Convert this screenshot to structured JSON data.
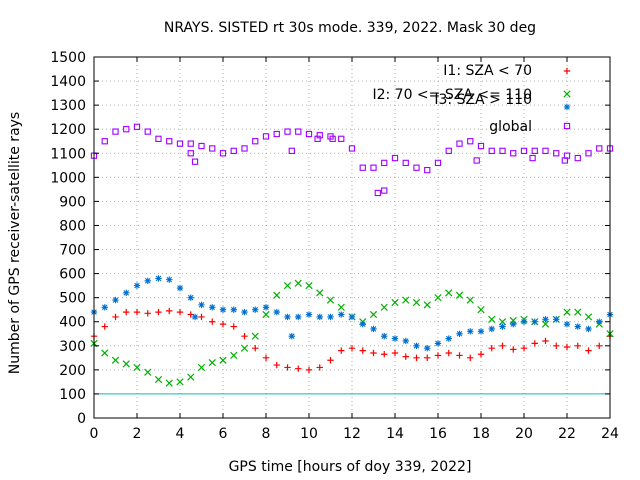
{
  "chart_data": {
    "type": "scatter",
    "title": "NRAYS. SISTED rt 30s mode. 339, 2022. Mask 30 deg",
    "xlabel": "GPS time [hours of doy 339, 2022]",
    "ylabel": "Number of GPS receiver-satellite rays",
    "xlim": [
      0,
      24
    ],
    "ylim": [
      0,
      1500
    ],
    "xticks": [
      "0",
      "2",
      "4",
      "6",
      "8",
      "10",
      "12",
      "14",
      "16",
      "18",
      "20",
      "22",
      "24"
    ],
    "yticks": [
      "0",
      "100",
      "200",
      "300",
      "400",
      "500",
      "600",
      "700",
      "800",
      "900",
      "1000",
      "1100",
      "1200",
      "1300",
      "1400",
      "1500"
    ],
    "grid": true,
    "legend_position": "top-right",
    "reference_line": {
      "y": 100,
      "color": "#00c0c0"
    },
    "series": [
      {
        "name": "I1: SZA < 70",
        "marker": "+",
        "color": "#ff0000",
        "x": [
          0,
          0.5,
          1,
          1.5,
          2,
          2.5,
          3,
          3.5,
          4,
          4.5,
          5,
          5.5,
          6,
          6.5,
          7,
          7.5,
          8,
          8.5,
          9,
          9.5,
          10,
          10.5,
          11,
          11.5,
          12,
          12.5,
          13,
          13.5,
          14,
          14.5,
          15,
          15.5,
          16,
          16.5,
          17,
          17.5,
          18,
          18.5,
          19,
          19.5,
          20,
          20.5,
          21,
          21.5,
          22,
          22.5,
          23,
          23.5,
          24
        ],
        "y": [
          340,
          380,
          420,
          440,
          440,
          435,
          440,
          445,
          440,
          430,
          420,
          400,
          390,
          380,
          340,
          290,
          250,
          220,
          210,
          205,
          200,
          210,
          240,
          280,
          290,
          280,
          270,
          265,
          270,
          255,
          250,
          250,
          260,
          270,
          260,
          250,
          265,
          290,
          300,
          285,
          290,
          310,
          320,
          300,
          295,
          300,
          280,
          300,
          340
        ]
      },
      {
        "name": "I2: 70 <= SZA <= 110",
        "marker": "x",
        "color": "#00b000",
        "x": [
          0,
          0.5,
          1,
          1.5,
          2,
          2.5,
          3,
          3.5,
          4,
          4.5,
          5,
          5.5,
          6,
          6.5,
          7,
          7.5,
          8,
          8.5,
          9,
          9.5,
          10,
          10.5,
          11,
          11.5,
          12,
          12.5,
          13,
          13.5,
          14,
          14.5,
          15,
          15.5,
          16,
          16.5,
          17,
          17.5,
          18,
          18.5,
          19,
          19.5,
          20,
          20.5,
          21,
          21.5,
          22,
          22.5,
          23,
          23.5,
          24
        ],
        "y": [
          310,
          270,
          240,
          225,
          210,
          190,
          160,
          145,
          150,
          170,
          210,
          230,
          240,
          260,
          290,
          340,
          430,
          510,
          550,
          560,
          550,
          520,
          490,
          460,
          420,
          400,
          430,
          460,
          480,
          490,
          480,
          470,
          500,
          520,
          510,
          490,
          450,
          410,
          400,
          405,
          410,
          400,
          390,
          410,
          440,
          440,
          420,
          390,
          350
        ]
      },
      {
        "name": "I3: SZA > 110",
        "marker": "*",
        "color": "#0070d0",
        "x": [
          0,
          0.5,
          1,
          1.5,
          2,
          2.5,
          3,
          3.5,
          4,
          4.5,
          5,
          5.5,
          6,
          6.5,
          7,
          7.5,
          8,
          8.5,
          9,
          9.5,
          10,
          10.5,
          11,
          11.5,
          12,
          12.5,
          13,
          13.5,
          14,
          14.5,
          15,
          15.5,
          16,
          16.5,
          17,
          17.5,
          18,
          18.5,
          19,
          19.5,
          20,
          20.5,
          21,
          21.5,
          22,
          22.5,
          23,
          23.5,
          24,
          4.7,
          9.2
        ],
        "y": [
          440,
          460,
          490,
          520,
          550,
          570,
          580,
          575,
          540,
          500,
          470,
          460,
          450,
          450,
          440,
          450,
          460,
          440,
          420,
          420,
          430,
          420,
          420,
          430,
          420,
          390,
          370,
          340,
          330,
          320,
          300,
          290,
          310,
          330,
          350,
          360,
          360,
          370,
          380,
          390,
          400,
          400,
          410,
          410,
          390,
          380,
          370,
          400,
          430,
          420,
          340
        ]
      },
      {
        "name": "global",
        "marker": "square",
        "color": "#a000ff",
        "x": [
          0,
          0.5,
          1,
          1.5,
          2,
          2.5,
          3,
          3.5,
          4,
          4.5,
          5,
          5.5,
          6,
          6.5,
          7,
          7.5,
          8,
          8.5,
          9,
          9.5,
          10,
          10.5,
          11,
          11.5,
          12,
          12.5,
          13,
          13.5,
          14,
          14.5,
          15,
          15.5,
          16,
          16.5,
          17,
          17.5,
          18,
          18.5,
          19,
          19.5,
          20,
          20.5,
          21,
          21.5,
          22,
          22.5,
          23,
          23.5,
          24,
          4.5,
          4.7,
          9.2,
          10.4,
          11.1,
          13.2,
          13.5,
          17.8,
          20.4,
          21.9
        ],
        "y": [
          1090,
          1150,
          1190,
          1200,
          1210,
          1190,
          1160,
          1150,
          1140,
          1140,
          1130,
          1120,
          1100,
          1110,
          1120,
          1150,
          1170,
          1180,
          1190,
          1190,
          1180,
          1175,
          1170,
          1160,
          1120,
          1040,
          1040,
          1060,
          1080,
          1060,
          1040,
          1030,
          1060,
          1110,
          1140,
          1150,
          1130,
          1110,
          1110,
          1100,
          1110,
          1110,
          1110,
          1100,
          1090,
          1080,
          1100,
          1120,
          1120,
          1100,
          1065,
          1110,
          1160,
          1160,
          935,
          945,
          1070,
          1080,
          1070
        ]
      }
    ]
  }
}
